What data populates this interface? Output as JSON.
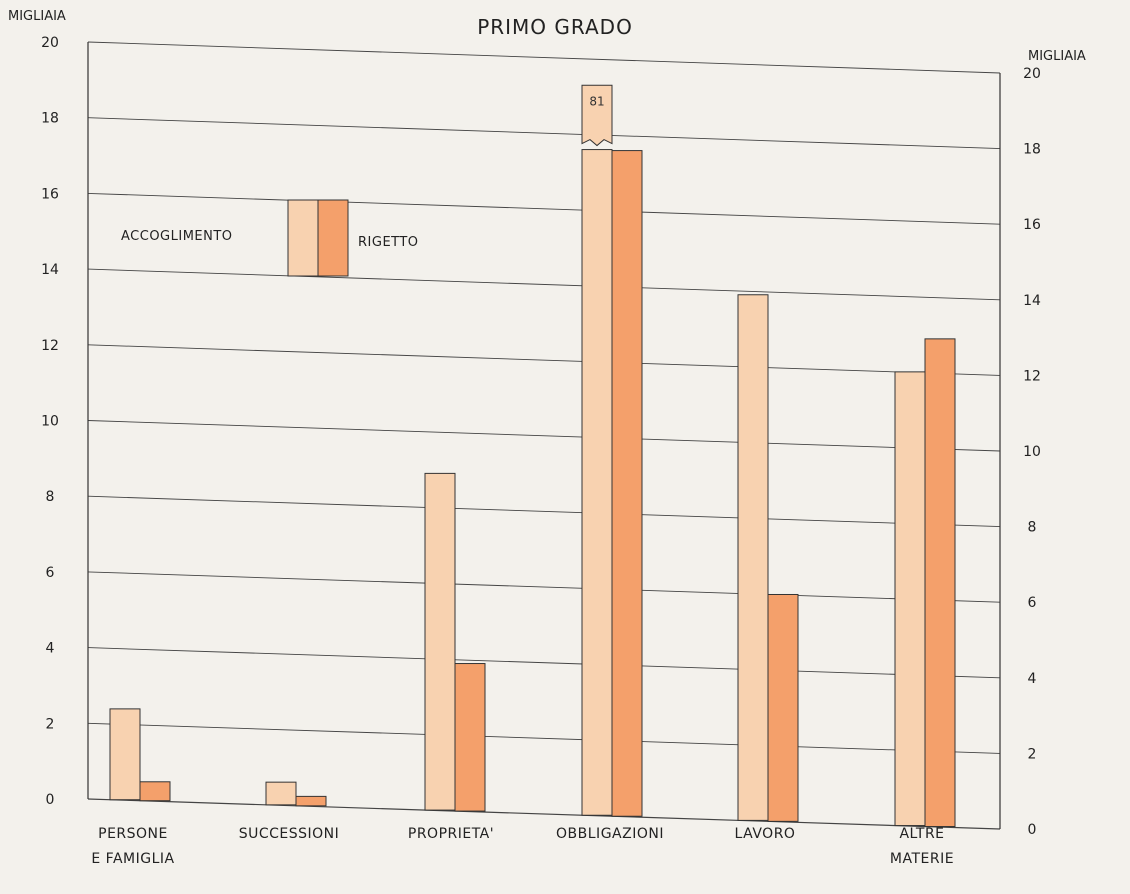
{
  "chart_data": {
    "type": "bar",
    "title": "PRIMO GRADO",
    "ylabel_left": "MIGLIAIA",
    "ylabel_right": "MIGLIAIA",
    "ylim": [
      0,
      20
    ],
    "grid": true,
    "left_ticks": [
      "0",
      "2",
      "4",
      "6",
      "8",
      "10",
      "12",
      "14",
      "16",
      "18",
      "20"
    ],
    "right_ticks": [
      "0",
      "2",
      "4",
      "6",
      "8",
      "10",
      "12",
      "14",
      "16",
      "18",
      "20"
    ],
    "categories": [
      [
        "PERSONE",
        "E FAMIGLIA"
      ],
      [
        "SUCCESSIONI"
      ],
      [
        "PROPRIETA'"
      ],
      [
        "OBBLIGAZIONI"
      ],
      [
        "LAVORO"
      ],
      [
        "ALTRE",
        "MATERIE"
      ]
    ],
    "series": [
      {
        "name": "ACCOGLIMENTO",
        "values": [
          2.4,
          0.6,
          8.9,
          81,
          13.9,
          12.0
        ],
        "color": "#f8d2b0"
      },
      {
        "name": "RIGETTO",
        "values": [
          0.5,
          0.25,
          3.9,
          17.6,
          6.0,
          12.9
        ],
        "color": "#f4a06b"
      }
    ],
    "broken_bar_label": "81",
    "legend_position": "top-left"
  }
}
